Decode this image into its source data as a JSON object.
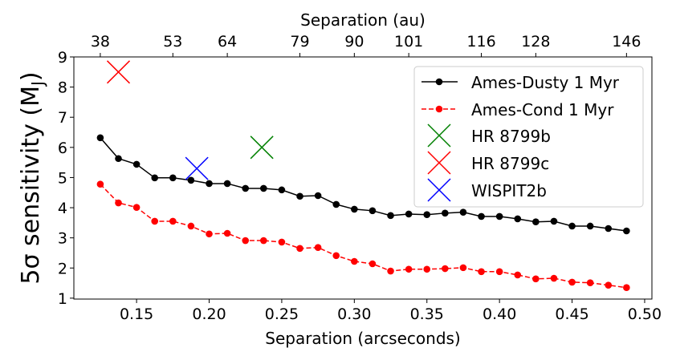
{
  "chart_data": {
    "type": "line",
    "xlabel": "Separation (arcseconds)",
    "ylabel_prefix": "5σ sensitivity (M",
    "ylabel_sub": "J",
    "ylabel_suffix": ")",
    "top_xlabel": "Separation (au)",
    "xlim": [
      0.1068,
      0.505
    ],
    "ylim": [
      0.97,
      9.0
    ],
    "xticks": [
      0.15,
      0.2,
      0.25,
      0.3,
      0.35,
      0.4,
      0.45,
      0.5
    ],
    "xtick_labels": [
      "0.15",
      "0.20",
      "0.25",
      "0.30",
      "0.35",
      "0.40",
      "0.45",
      "0.50"
    ],
    "yticks": [
      1,
      2,
      3,
      4,
      5,
      6,
      7,
      8,
      9
    ],
    "ytick_labels": [
      "1",
      "2",
      "3",
      "4",
      "5",
      "6",
      "7",
      "8",
      "9"
    ],
    "top_xticks": [
      0.125,
      0.175,
      0.2125,
      0.2625,
      0.3,
      0.3375,
      0.3875,
      0.425,
      0.4875
    ],
    "top_xtick_labels": [
      "38",
      "53",
      "64",
      "79",
      "90",
      "101",
      "116",
      "128",
      "146"
    ],
    "x": [
      0.125,
      0.1375,
      0.15,
      0.1625,
      0.175,
      0.1875,
      0.2,
      0.2125,
      0.225,
      0.2375,
      0.25,
      0.2625,
      0.275,
      0.2875,
      0.3,
      0.3125,
      0.325,
      0.3375,
      0.35,
      0.3625,
      0.375,
      0.3875,
      0.4,
      0.4125,
      0.425,
      0.4375,
      0.45,
      0.4625,
      0.475,
      0.4875
    ],
    "series": [
      {
        "name": "Ames-Dusty 1 Myr",
        "color": "#000000",
        "dashed": false,
        "values": [
          6.32,
          5.63,
          5.44,
          4.99,
          4.99,
          4.91,
          4.8,
          4.8,
          4.64,
          4.64,
          4.59,
          4.38,
          4.4,
          4.11,
          3.95,
          3.9,
          3.74,
          3.79,
          3.77,
          3.82,
          3.85,
          3.71,
          3.71,
          3.63,
          3.53,
          3.55,
          3.39,
          3.39,
          3.31,
          3.23
        ]
      },
      {
        "name": "Ames-Cond 1 Myr",
        "color": "#ff0000",
        "dashed": true,
        "values": [
          4.78,
          4.16,
          4.01,
          3.55,
          3.55,
          3.39,
          3.13,
          3.15,
          2.91,
          2.91,
          2.86,
          2.65,
          2.68,
          2.41,
          2.22,
          2.14,
          1.9,
          1.96,
          1.96,
          1.98,
          2.01,
          1.88,
          1.88,
          1.77,
          1.64,
          1.66,
          1.53,
          1.51,
          1.43,
          1.35
        ]
      }
    ],
    "markers": [
      {
        "name": "HR 8799b",
        "color": "#008000",
        "x": 0.2363,
        "y": 6.0
      },
      {
        "name": "HR 8799c",
        "color": "#ff0000",
        "x": 0.1375,
        "y": 8.5
      },
      {
        "name": "WISPIT2b",
        "color": "#0000ff",
        "x": 0.1915,
        "y": 5.3
      }
    ],
    "legend_placement": "top-right",
    "grid": false
  }
}
